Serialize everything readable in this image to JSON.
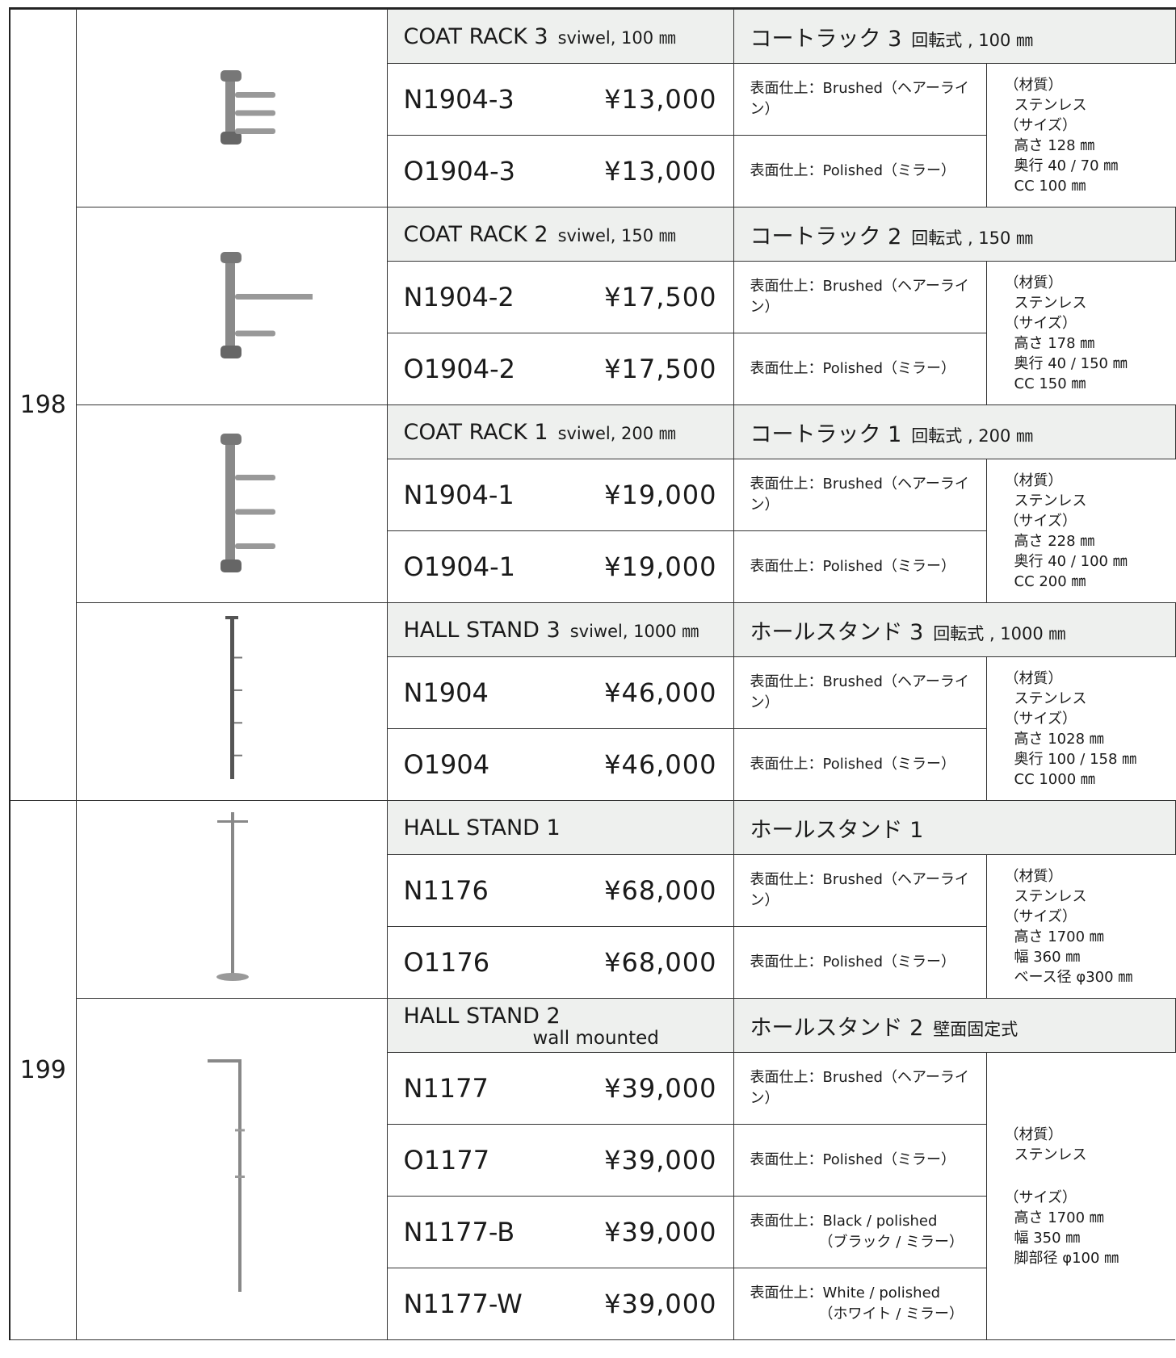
{
  "groups": [
    {
      "page": "198",
      "products": [
        {
          "name": "COAT RACK 3",
          "name_note": "sviwel, 100 ㎜",
          "name_ja": "コートラック 3",
          "name_ja_note": "回転式 , 100 ㎜",
          "items": [
            {
              "code": "N1904-3",
              "price": "¥13,000",
              "finish": [
                "表面仕上：Brushed（ヘアーライン）"
              ]
            },
            {
              "code": "O1904-3",
              "price": "¥13,000",
              "finish": [
                "表面仕上：Polished（ミラー）"
              ]
            }
          ],
          "spec": [
            {
              "label": "（材質）",
              "lines": [
                "ステンレス"
              ]
            },
            {
              "label": "（サイズ）",
              "lines": [
                "高さ 128 ㎜",
                "奥行 40 / 70 ㎜",
                "CC 100 ㎜"
              ]
            }
          ]
        },
        {
          "name": "COAT RACK 2",
          "name_note": "sviwel, 150 ㎜",
          "name_ja": "コートラック 2",
          "name_ja_note": "回転式 , 150 ㎜",
          "items": [
            {
              "code": "N1904-2",
              "price": "¥17,500",
              "finish": [
                "表面仕上：Brushed（ヘアーライン）"
              ]
            },
            {
              "code": "O1904-2",
              "price": "¥17,500",
              "finish": [
                "表面仕上：Polished（ミラー）"
              ]
            }
          ],
          "spec": [
            {
              "label": "（材質）",
              "lines": [
                "ステンレス"
              ]
            },
            {
              "label": "（サイズ）",
              "lines": [
                "高さ 178 ㎜",
                "奥行 40 / 150 ㎜",
                "CC 150 ㎜"
              ]
            }
          ]
        },
        {
          "name": "COAT RACK 1",
          "name_note": "sviwel, 200 ㎜",
          "name_ja": "コートラック 1",
          "name_ja_note": "回転式 , 200 ㎜",
          "items": [
            {
              "code": "N1904-1",
              "price": "¥19,000",
              "finish": [
                "表面仕上：Brushed（ヘアーライン）"
              ]
            },
            {
              "code": "O1904-1",
              "price": "¥19,000",
              "finish": [
                "表面仕上：Polished（ミラー）"
              ]
            }
          ],
          "spec": [
            {
              "label": "（材質）",
              "lines": [
                "ステンレス"
              ]
            },
            {
              "label": "（サイズ）",
              "lines": [
                "高さ 228 ㎜",
                "奥行 40 / 100 ㎜",
                "CC 200 ㎜"
              ]
            }
          ]
        },
        {
          "name": "HALL STAND 3",
          "name_note": "sviwel, 1000 ㎜",
          "name_ja": "ホールスタンド 3",
          "name_ja_note": "回転式 , 1000 ㎜",
          "items": [
            {
              "code": "N1904",
              "price": "¥46,000",
              "finish": [
                "表面仕上：Brushed（ヘアーライン）"
              ]
            },
            {
              "code": "O1904",
              "price": "¥46,000",
              "finish": [
                "表面仕上：Polished（ミラー）"
              ]
            }
          ],
          "spec": [
            {
              "label": "（材質）",
              "lines": [
                "ステンレス"
              ]
            },
            {
              "label": "（サイズ）",
              "lines": [
                "高さ 1028 ㎜",
                "奥行 100 / 158 ㎜",
                "CC 1000 ㎜"
              ]
            }
          ]
        }
      ]
    },
    {
      "page": "199",
      "products": [
        {
          "name": "HALL STAND 1",
          "name_ja": "ホールスタンド 1",
          "items": [
            {
              "code": "N1176",
              "price": "¥68,000",
              "finish": [
                "表面仕上：Brushed（ヘアーライン）"
              ]
            },
            {
              "code": "O1176",
              "price": "¥68,000",
              "finish": [
                "表面仕上：Polished（ミラー）"
              ]
            }
          ],
          "spec": [
            {
              "label": "（材質）",
              "lines": [
                "ステンレス"
              ]
            },
            {
              "label": "（サイズ）",
              "lines": [
                "高さ 1700 ㎜",
                "幅 360 ㎜",
                "ベース径 φ300 ㎜"
              ]
            }
          ]
        },
        {
          "name": "HALL STAND 2",
          "name_sub": "wall mounted",
          "name_ja": "ホールスタンド 2",
          "name_ja_note": "壁面固定式",
          "items": [
            {
              "code": "N1177",
              "price": "¥39,000",
              "finish": [
                "表面仕上：Brushed（ヘアーライン）"
              ]
            },
            {
              "code": "O1177",
              "price": "¥39,000",
              "finish": [
                "表面仕上：Polished（ミラー）"
              ]
            },
            {
              "code": "N1177-B",
              "price": "¥39,000",
              "finish": [
                "表面仕上：Black / polished",
                "（ブラック / ミラー）"
              ]
            },
            {
              "code": "N1177-W",
              "price": "¥39,000",
              "finish": [
                "表面仕上：White / polished",
                "（ホワイト / ミラー）"
              ]
            }
          ],
          "spec": [
            {
              "label": "（材質）",
              "lines": [
                "ステンレス"
              ]
            },
            {
              "label": "（サイズ）",
              "lines": [
                "高さ 1700 ㎜",
                "幅 350 ㎜",
                "脚部径 φ100 ㎜"
              ]
            }
          ]
        }
      ]
    }
  ]
}
